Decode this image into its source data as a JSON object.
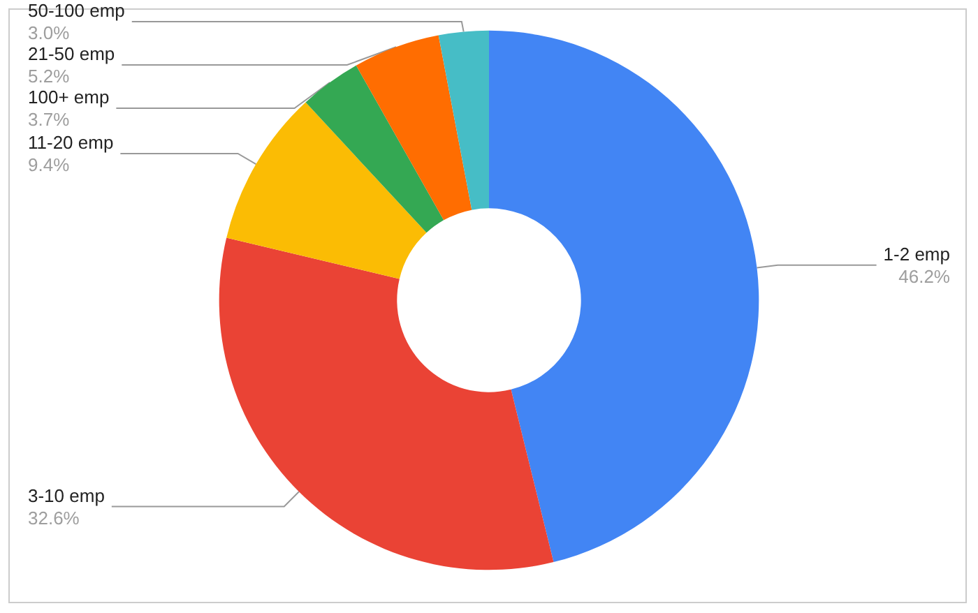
{
  "chart_data": {
    "type": "donut",
    "categories": [
      "1-2 emp",
      "3-10 emp",
      "11-20 emp",
      "100+ emp",
      "21-50 emp",
      "50-100 emp"
    ],
    "values": [
      46.2,
      32.6,
      9.4,
      3.7,
      5.2,
      3.0
    ],
    "value_labels": [
      "46.2%",
      "32.6%",
      "9.4%",
      "3.7%",
      "5.2%",
      "3.0%"
    ],
    "colors": [
      "#4285f4",
      "#ea4335",
      "#fbbc04",
      "#34a853",
      "#ff6d01",
      "#46bdc6"
    ],
    "legend": false
  }
}
